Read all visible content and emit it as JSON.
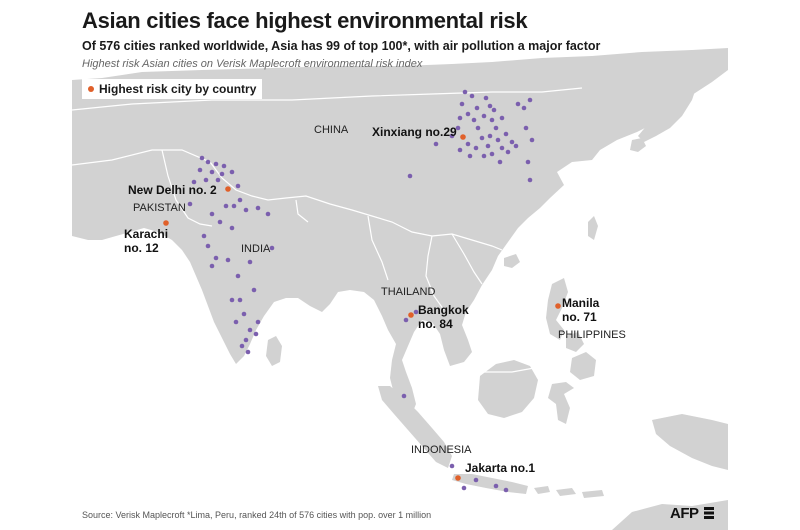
{
  "header": {
    "title": "Asian cities face highest environmental risk",
    "subtitle": "Of 576 cities ranked worldwide, Asia has 99 of top 100*, with air pollution a major factor",
    "description": "Highest risk Asian cities on Verisk Maplecroft environmental risk index"
  },
  "legend": {
    "label": "Highest risk city by country",
    "color": "#e0602a"
  },
  "colors": {
    "land": "#d2d2d2",
    "sea": "#ffffff",
    "city_dot": "#7b5fae",
    "highlight": "#e0602a",
    "border": "#ffffff"
  },
  "countries": {
    "china": "CHINA",
    "pakistan": "PAKISTAN",
    "india": "INDIA",
    "thailand": "THAILAND",
    "philippines": "PHILIPPINES",
    "indonesia": "INDONESIA"
  },
  "highlights": [
    {
      "id": "xinxiang",
      "label": "Xinxiang no.29"
    },
    {
      "id": "new-delhi",
      "label": "New Delhi  no. 2"
    },
    {
      "id": "karachi",
      "label_line1": "Karachi",
      "label_line2": "no. 12"
    },
    {
      "id": "bangkok",
      "label_line1": "Bangkok",
      "label_line2": "no. 84"
    },
    {
      "id": "manila",
      "label_line1": "Manila",
      "label_line2": "no. 71"
    },
    {
      "id": "jakarta",
      "label": "Jakarta  no.1"
    }
  ],
  "footer": {
    "source": "Source: Verisk Maplecroft  *Lima, Peru, ranked 24th of 576 cities with pop. over 1 million",
    "agency": "AFP"
  }
}
